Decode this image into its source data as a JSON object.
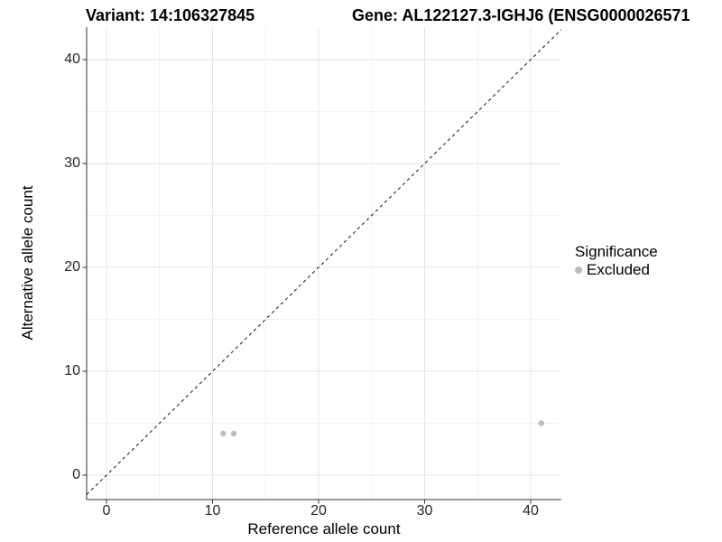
{
  "figure": {
    "title_variant": "Variant: 14:106327845",
    "title_gene": "Gene: AL122127.3-IGHJ6 (ENSG0000026571"
  },
  "chart_data": {
    "type": "scatter",
    "title_left": "Variant: 14:106327845",
    "title_right": "Gene: AL122127.3-IGHJ6 (ENSG0000026571",
    "xlabel": "Reference allele count",
    "ylabel": "Alternative allele count",
    "x_ticks": [
      0,
      10,
      20,
      30,
      40
    ],
    "y_ticks": [
      0,
      10,
      20,
      30,
      40
    ],
    "x_minor_ticks": [
      5,
      15,
      25,
      35
    ],
    "y_minor_ticks": [
      5,
      15,
      25,
      35
    ],
    "xlim": [
      -1.9,
      42.9
    ],
    "ylim": [
      -2.3,
      43.1
    ],
    "grid": "major+minor",
    "aspect": "equal",
    "series": [
      {
        "name": "Excluded",
        "color": "#bdbdbd",
        "points": [
          {
            "x": 11,
            "y": 4
          },
          {
            "x": 12,
            "y": 4
          },
          {
            "x": 41,
            "y": 5
          }
        ]
      }
    ],
    "reference_line": {
      "kind": "identity",
      "slope": 1,
      "intercept": 0,
      "style": "dashed",
      "color": "#262626"
    },
    "legend": {
      "title": "Significance",
      "position": "right",
      "items": [
        {
          "label": "Excluded",
          "color": "#bdbdbd"
        }
      ]
    }
  },
  "colors": {
    "background": "#ffffff",
    "grid_major": "#e6e6e6",
    "grid_minor": "#f1f1f1",
    "axis_line": "#333333",
    "tick_mark": "#333333",
    "tick_text": "#262626",
    "title_text": "#000000",
    "point": "#bdbdbd"
  }
}
